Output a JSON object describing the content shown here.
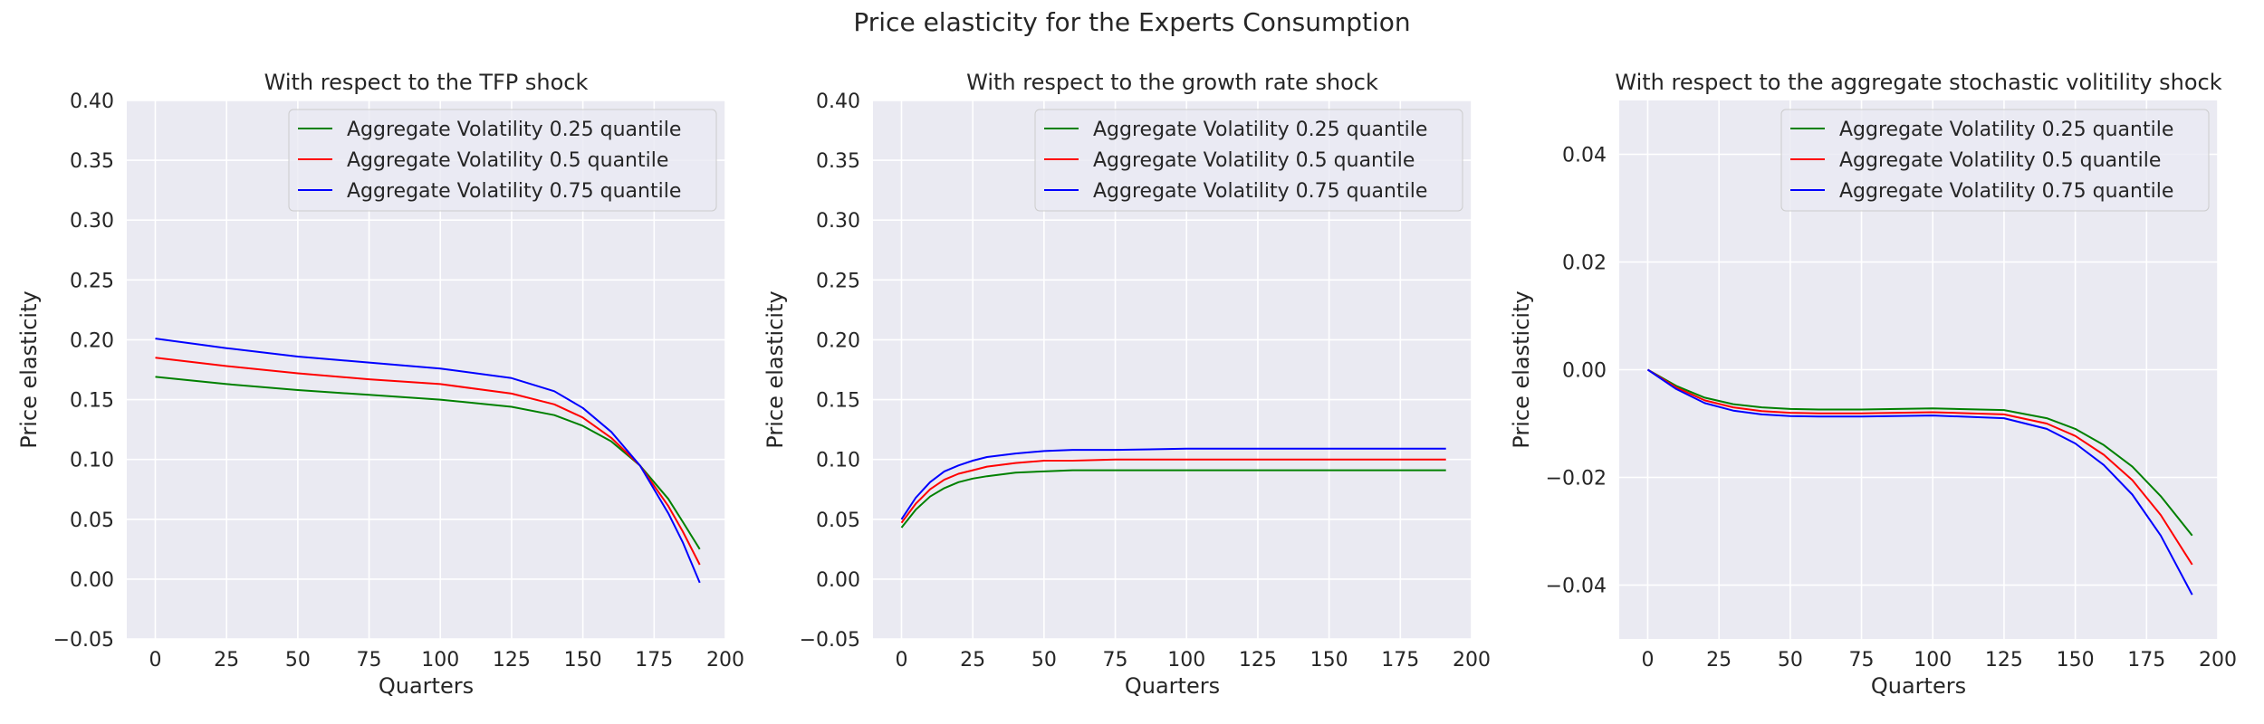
{
  "figure": {
    "title": "Price elasticity for the Experts Consumption"
  },
  "colors": {
    "background": "#eaeaf2",
    "grid": "#ffffff",
    "q25": "#008000",
    "q50": "#ff0000",
    "q75": "#0000ff"
  },
  "chart_data": [
    {
      "type": "line",
      "title": "With respect to the TFP shock",
      "xlabel": "Quarters",
      "ylabel": "Price elasticity",
      "xlim": [
        -10,
        200
      ],
      "ylim": [
        -0.05,
        0.4
      ],
      "xticks": [
        0,
        25,
        50,
        75,
        100,
        125,
        150,
        175,
        200
      ],
      "yticks": [
        -0.05,
        0.0,
        0.05,
        0.1,
        0.15,
        0.2,
        0.25,
        0.3,
        0.35,
        0.4
      ],
      "ytick_labels": [
        "−0.05",
        "0.00",
        "0.05",
        "0.10",
        "0.15",
        "0.20",
        "0.25",
        "0.30",
        "0.35",
        "0.40"
      ],
      "grid": true,
      "legend_position": "top-right",
      "x": [
        0,
        25,
        50,
        75,
        100,
        125,
        140,
        150,
        160,
        170,
        180,
        185,
        191
      ],
      "series": [
        {
          "name": "Aggregate Volatility 0.25 quantile",
          "color": "#008000",
          "values": [
            0.169,
            0.163,
            0.158,
            0.154,
            0.15,
            0.144,
            0.137,
            0.128,
            0.115,
            0.095,
            0.067,
            0.048,
            0.025
          ]
        },
        {
          "name": "Aggregate Volatility 0.5 quantile",
          "color": "#ff0000",
          "values": [
            0.185,
            0.178,
            0.172,
            0.167,
            0.163,
            0.155,
            0.146,
            0.135,
            0.118,
            0.095,
            0.061,
            0.04,
            0.012
          ]
        },
        {
          "name": "Aggregate Volatility 0.75 quantile",
          "color": "#0000ff",
          "values": [
            0.201,
            0.193,
            0.186,
            0.181,
            0.176,
            0.168,
            0.157,
            0.143,
            0.123,
            0.095,
            0.055,
            0.031,
            -0.003
          ]
        }
      ]
    },
    {
      "type": "line",
      "title": "With respect to the growth rate shock",
      "xlabel": "Quarters",
      "ylabel": "Price elasticity",
      "xlim": [
        -10,
        200
      ],
      "ylim": [
        -0.05,
        0.4
      ],
      "xticks": [
        0,
        25,
        50,
        75,
        100,
        125,
        150,
        175,
        200
      ],
      "yticks": [
        -0.05,
        0.0,
        0.05,
        0.1,
        0.15,
        0.2,
        0.25,
        0.3,
        0.35,
        0.4
      ],
      "ytick_labels": [
        "−0.05",
        "0.00",
        "0.05",
        "0.10",
        "0.15",
        "0.20",
        "0.25",
        "0.30",
        "0.35",
        "0.40"
      ],
      "grid": true,
      "legend_position": "top-right",
      "x": [
        0,
        5,
        10,
        15,
        20,
        25,
        30,
        40,
        50,
        60,
        75,
        100,
        125,
        150,
        175,
        191
      ],
      "series": [
        {
          "name": "Aggregate Volatility 0.25 quantile",
          "color": "#008000",
          "values": [
            0.043,
            0.058,
            0.069,
            0.076,
            0.081,
            0.084,
            0.086,
            0.089,
            0.09,
            0.091,
            0.091,
            0.091,
            0.091,
            0.091,
            0.091,
            0.091
          ]
        },
        {
          "name": "Aggregate Volatility 0.5 quantile",
          "color": "#ff0000",
          "values": [
            0.047,
            0.063,
            0.075,
            0.083,
            0.088,
            0.091,
            0.094,
            0.097,
            0.099,
            0.099,
            0.1,
            0.1,
            0.1,
            0.1,
            0.1,
            0.1
          ]
        },
        {
          "name": "Aggregate Volatility 0.75 quantile",
          "color": "#0000ff",
          "values": [
            0.05,
            0.068,
            0.081,
            0.09,
            0.095,
            0.099,
            0.102,
            0.105,
            0.107,
            0.108,
            0.108,
            0.109,
            0.109,
            0.109,
            0.109,
            0.109
          ]
        }
      ]
    },
    {
      "type": "line",
      "title": "With respect to the aggregate stochastic volitility shock",
      "xlabel": "Quarters",
      "ylabel": "Price elasticity",
      "xlim": [
        -10,
        200
      ],
      "ylim": [
        -0.05,
        0.05
      ],
      "xticks": [
        0,
        25,
        50,
        75,
        100,
        125,
        150,
        175,
        200
      ],
      "yticks": [
        -0.04,
        -0.02,
        0.0,
        0.02,
        0.04
      ],
      "ytick_labels": [
        "−0.04",
        "−0.02",
        "0.00",
        "0.02",
        "0.04"
      ],
      "grid": true,
      "legend_position": "top-right",
      "x": [
        0,
        10,
        20,
        30,
        40,
        50,
        60,
        75,
        100,
        125,
        140,
        150,
        160,
        170,
        180,
        191
      ],
      "series": [
        {
          "name": "Aggregate Volatility 0.25 quantile",
          "color": "#008000",
          "values": [
            0.0,
            -0.003,
            -0.0052,
            -0.0064,
            -0.007,
            -0.0073,
            -0.0074,
            -0.0074,
            -0.0072,
            -0.0075,
            -0.009,
            -0.011,
            -0.014,
            -0.018,
            -0.0235,
            -0.0308
          ]
        },
        {
          "name": "Aggregate Volatility 0.5 quantile",
          "color": "#ff0000",
          "values": [
            0.0,
            -0.0033,
            -0.0057,
            -0.007,
            -0.0077,
            -0.008,
            -0.0081,
            -0.0081,
            -0.0079,
            -0.0083,
            -0.01,
            -0.0123,
            -0.0158,
            -0.0205,
            -0.027,
            -0.0362
          ]
        },
        {
          "name": "Aggregate Volatility 0.75 quantile",
          "color": "#0000ff",
          "values": [
            0.0,
            -0.0036,
            -0.0062,
            -0.0076,
            -0.0083,
            -0.0086,
            -0.0087,
            -0.0087,
            -0.0085,
            -0.009,
            -0.011,
            -0.0137,
            -0.0177,
            -0.0232,
            -0.0308,
            -0.0418
          ]
        }
      ]
    }
  ]
}
